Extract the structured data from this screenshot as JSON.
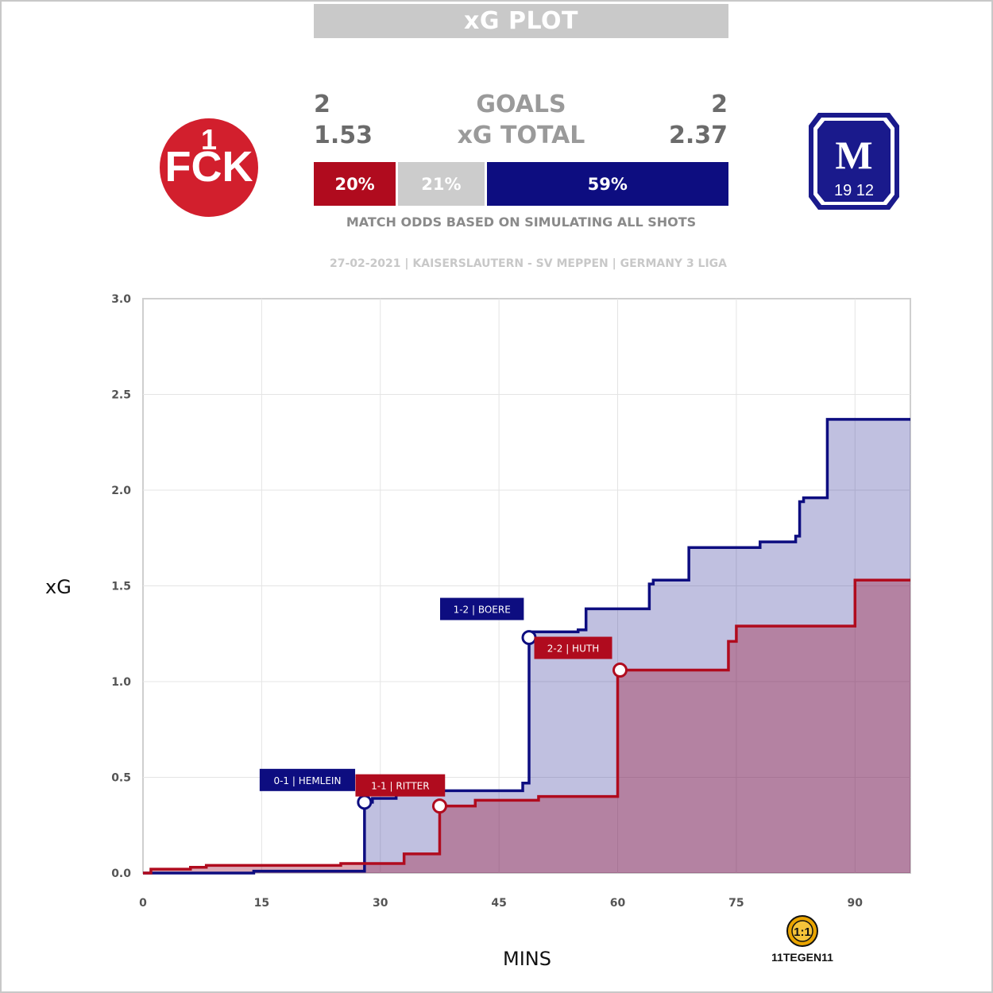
{
  "header": {
    "title": "xG PLOT"
  },
  "stats": {
    "home_goals": "2",
    "away_goals": "2",
    "goals_label": "GOALS",
    "home_xg": "1.53",
    "away_xg": "2.37",
    "xg_label": "xG TOTAL"
  },
  "odds": {
    "home": "20%",
    "draw": "21%",
    "away": "59%",
    "home_value": 20,
    "draw_value": 21,
    "away_value": 59,
    "note": "MATCH ODDS BASED ON SIMULATING ALL SHOTS"
  },
  "match_info": "27-02-2021 | KAISERSLAUTERN - SV MEPPEN | GERMANY 3 LIGA",
  "logos": {
    "home_text": "1FCK",
    "away_text": "SVM",
    "away_year": "19 12"
  },
  "brand": {
    "text": "11TEGEN11"
  },
  "colors": {
    "home": "#b00b1e",
    "away": "#0d0d80",
    "draw": "#cccccc",
    "grid": "#e4e4e4"
  },
  "chart_data": {
    "type": "line",
    "xlabel": "MINS",
    "ylabel": "xG",
    "xlim": [
      0,
      97
    ],
    "ylim": [
      0,
      3.0
    ],
    "xticks": [
      "0",
      "15",
      "30",
      "45",
      "60",
      "75",
      "90"
    ],
    "yticks": [
      "0.0",
      "0.5",
      "1.0",
      "1.5",
      "2.0",
      "2.5",
      "3.0"
    ],
    "series": [
      {
        "team": "home",
        "steps": [
          [
            0,
            0
          ],
          [
            1,
            0.02
          ],
          [
            2,
            0.02
          ],
          [
            6,
            0.03
          ],
          [
            8,
            0.04
          ],
          [
            25,
            0.05
          ],
          [
            33,
            0.1
          ],
          [
            37.5,
            0.35
          ],
          [
            42,
            0.38
          ],
          [
            50,
            0.4
          ],
          [
            60,
            1.06
          ],
          [
            74,
            1.21
          ],
          [
            75,
            1.29
          ],
          [
            90,
            1.53
          ],
          [
            97,
            1.53
          ]
        ]
      },
      {
        "team": "away",
        "steps": [
          [
            0,
            0
          ],
          [
            14,
            0.01
          ],
          [
            28,
            0.37
          ],
          [
            29,
            0.39
          ],
          [
            32,
            0.43
          ],
          [
            48,
            0.47
          ],
          [
            48.8,
            1.23
          ],
          [
            49,
            1.26
          ],
          [
            55,
            1.27
          ],
          [
            56,
            1.38
          ],
          [
            64,
            1.51
          ],
          [
            64.5,
            1.53
          ],
          [
            69,
            1.7
          ],
          [
            78,
            1.73
          ],
          [
            82.5,
            1.76
          ],
          [
            83,
            1.94
          ],
          [
            83.5,
            1.96
          ],
          [
            86.5,
            2.37
          ],
          [
            97,
            2.37
          ]
        ]
      }
    ],
    "goals": [
      {
        "team": "away",
        "minute": 28,
        "xg": 0.37,
        "label": "0-1 | HEMLEIN"
      },
      {
        "team": "home",
        "minute": 37.5,
        "xg": 0.35,
        "label": "1-1 | RITTER"
      },
      {
        "team": "away",
        "minute": 48.8,
        "xg": 1.23,
        "label": "1-2 | BOERE"
      },
      {
        "team": "home",
        "minute": 60.3,
        "xg": 1.06,
        "label": "2-2 | HUTH"
      }
    ]
  }
}
